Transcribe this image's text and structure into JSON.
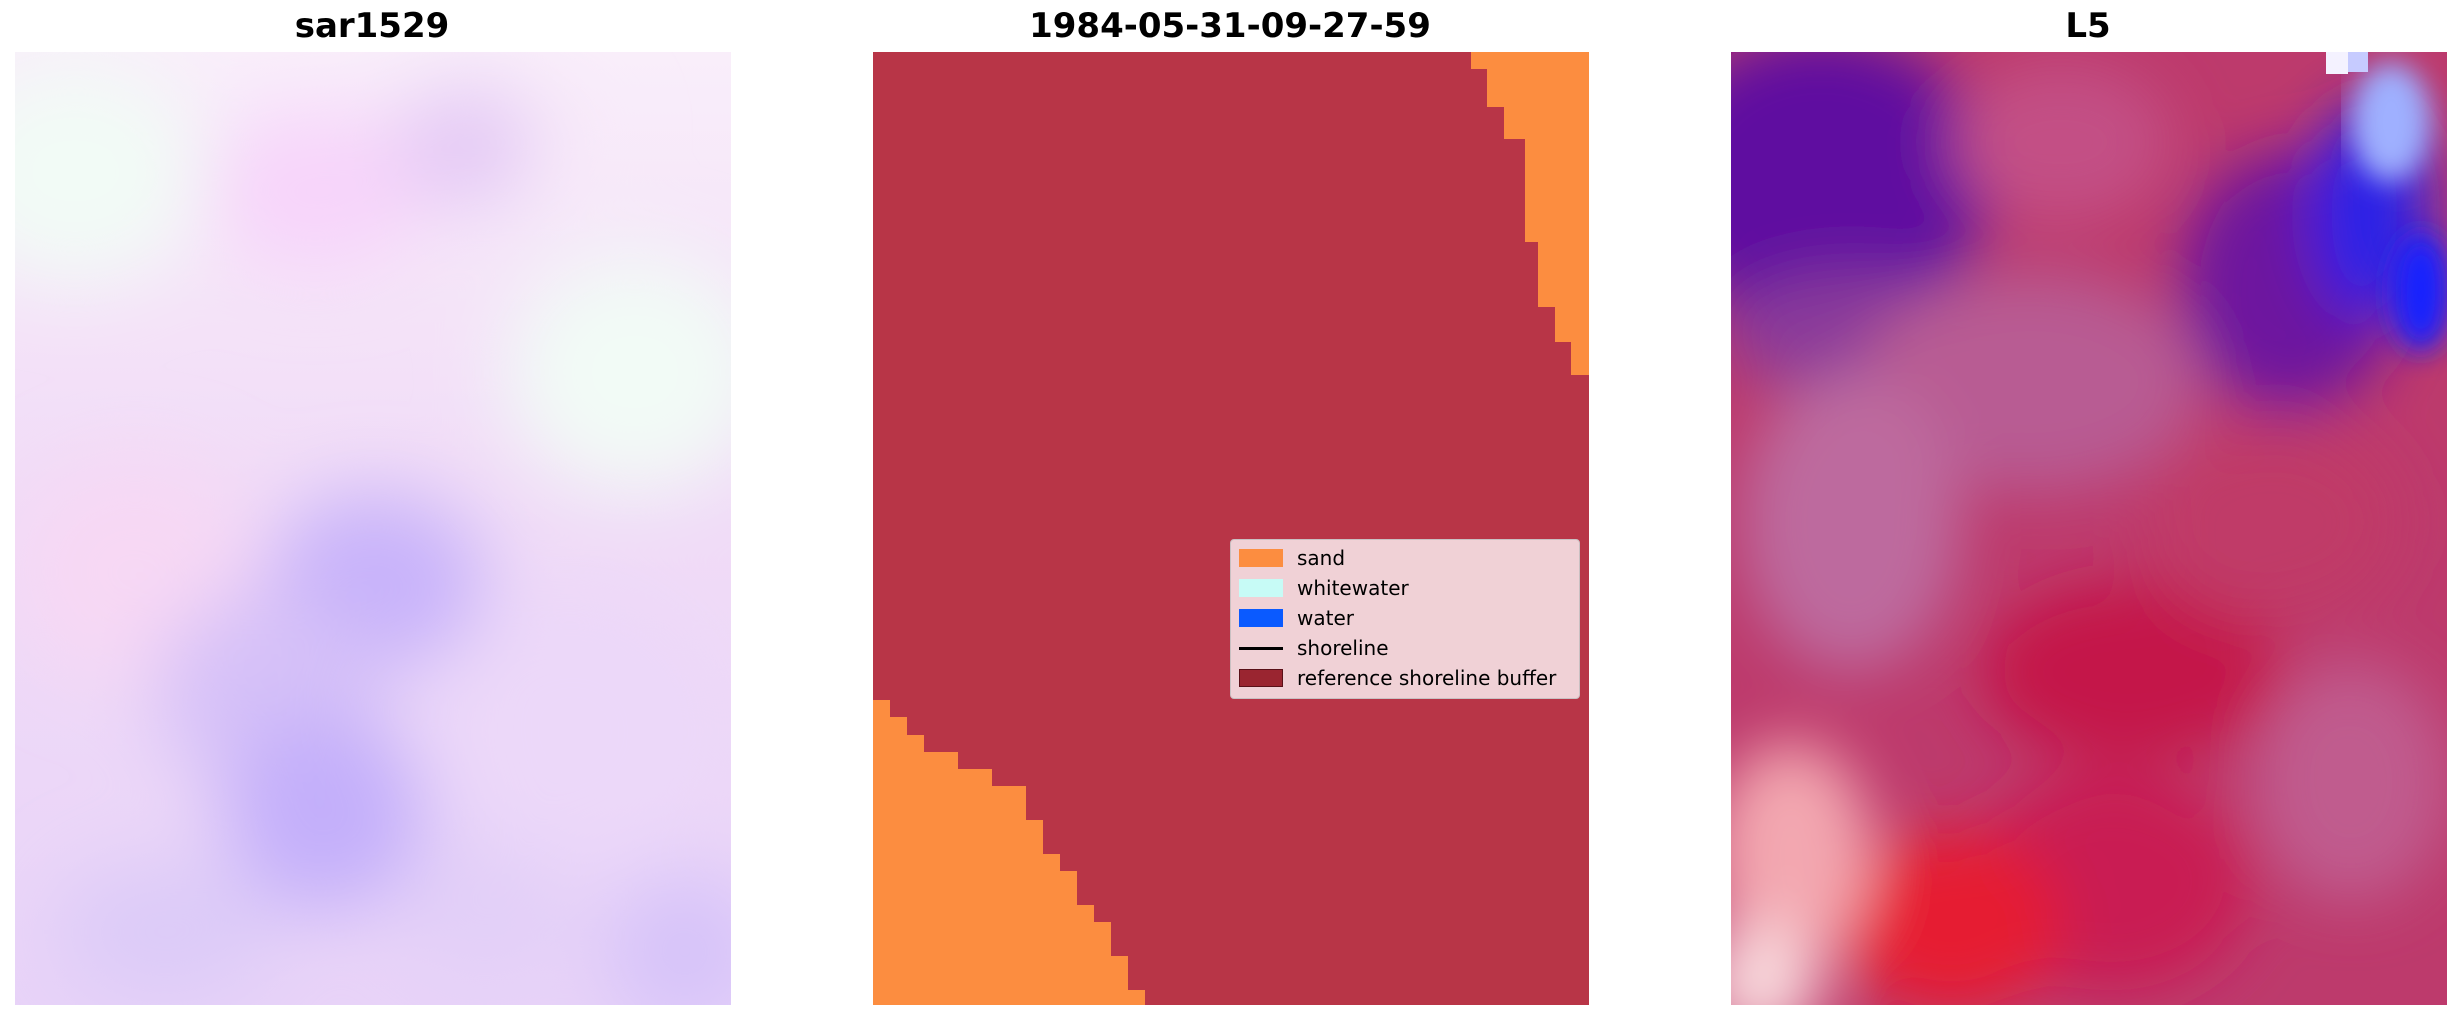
{
  "panels": [
    {
      "id": "sar",
      "title": "sar1529"
    },
    {
      "id": "classification",
      "title": "1984-05-31-09-27-59"
    },
    {
      "id": "l5",
      "title": "L5"
    }
  ],
  "legend": {
    "items": [
      {
        "label": "sand",
        "kind": "patch",
        "color": "#FC8D40"
      },
      {
        "label": "whitewater",
        "kind": "patch",
        "color": "#C7FBF6"
      },
      {
        "label": "water",
        "kind": "patch",
        "color": "#0A5AFF"
      },
      {
        "label": "shoreline",
        "kind": "line",
        "color": "#000000"
      },
      {
        "label": "reference shoreline buffer",
        "kind": "patch",
        "color": "#9A2530"
      }
    ]
  },
  "colors": {
    "background": "#FFFFFF",
    "buffer": "#B83547",
    "sand": "#FC8D40"
  }
}
